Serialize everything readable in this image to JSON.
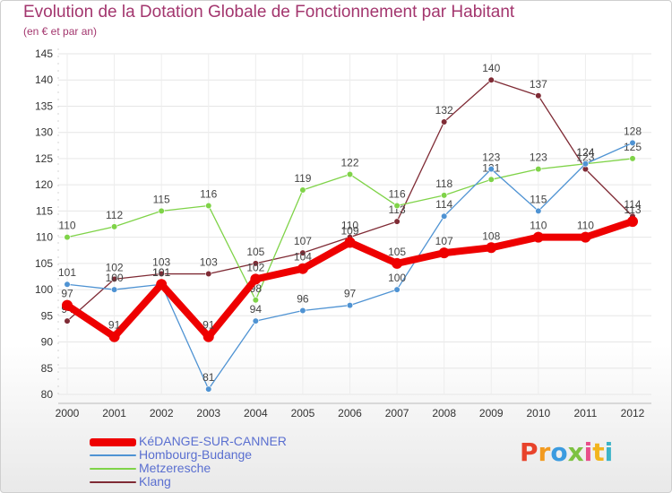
{
  "header": {
    "title": "Evolution de la Dotation Globale de Fonctionnement par Habitant",
    "subtitle": "(en € et par an)"
  },
  "logo": {
    "letters": [
      "P",
      "r",
      "o",
      "x",
      "i",
      "t",
      "i"
    ]
  },
  "chart_data": {
    "type": "line",
    "title": "Evolution de la Dotation Globale de Fonctionnement par Habitant",
    "subtitle": "(en € et par an)",
    "xlabel": "",
    "ylabel": "",
    "x": [
      "2000",
      "2001",
      "2002",
      "2003",
      "2004",
      "2005",
      "2006",
      "2007",
      "2008",
      "2009",
      "2010",
      "2011",
      "2012"
    ],
    "ylim": [
      80,
      145
    ],
    "yticks": [
      80,
      85,
      90,
      95,
      100,
      105,
      110,
      115,
      120,
      125,
      130,
      135,
      140,
      145
    ],
    "grid": true,
    "legend_position": "bottom-left",
    "series": [
      {
        "name": "Klang",
        "color": "#7f2b35",
        "values": [
          94,
          102,
          103,
          103,
          105,
          107,
          110,
          113,
          132,
          140,
          137,
          123,
          114
        ],
        "labels": [
          "94",
          "102",
          "103",
          "103",
          "105",
          "107",
          "110",
          "113",
          "132",
          "140",
          "137",
          "123",
          "114"
        ]
      },
      {
        "name": "Metzeresche",
        "color": "#7fd348",
        "values": [
          110,
          112,
          115,
          116,
          98,
          119,
          122,
          116,
          118,
          121,
          123,
          124,
          125
        ],
        "labels": [
          "110",
          "112",
          "115",
          "116",
          "98",
          "119",
          "122",
          "116",
          "118",
          "121",
          "123",
          "124",
          "125"
        ]
      },
      {
        "name": "Hombourg-Budange",
        "color": "#4f93d3",
        "values": [
          101,
          100,
          101,
          81,
          94,
          96,
          97,
          100,
          114,
          123,
          115,
          124,
          128
        ],
        "labels": [
          "101",
          "100",
          "101",
          "81",
          "94",
          "96",
          "97",
          "100",
          "114",
          "123",
          "115",
          "124",
          "128"
        ]
      },
      {
        "name": "KéDANGE-SUR-CANNER",
        "color": "#ee0000",
        "values": [
          97,
          91,
          101,
          91,
          102,
          104,
          109,
          105,
          107,
          108,
          110,
          110,
          113
        ],
        "labels": [
          "97",
          "91",
          "101",
          "91",
          "102",
          "104",
          "109",
          "105",
          "107",
          "108",
          "110",
          "110",
          "113"
        ]
      }
    ],
    "legend_order": [
      "KéDANGE-SUR-CANNER",
      "Hombourg-Budange",
      "Metzeresche",
      "Klang"
    ]
  }
}
